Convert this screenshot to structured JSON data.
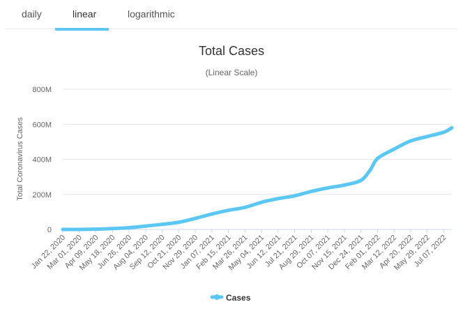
{
  "tabs": [
    {
      "label": "daily",
      "active": false
    },
    {
      "label": "linear",
      "active": true
    },
    {
      "label": "logarithmic",
      "active": false
    }
  ],
  "accent_color": "#5bc7f2",
  "chart_data": {
    "type": "line",
    "title": "Total Cases",
    "subtitle": "(Linear Scale)",
    "xlabel": "",
    "ylabel": "Total Coronavirus Cases",
    "ylim": [
      0,
      800000000
    ],
    "yticks": [
      {
        "value": 0,
        "label": "0"
      },
      {
        "value": 200000000,
        "label": "200M"
      },
      {
        "value": 400000000,
        "label": "400M"
      },
      {
        "value": 600000000,
        "label": "600M"
      },
      {
        "value": 800000000,
        "label": "800M"
      }
    ],
    "xtick_labels": [
      "Jan 22, 2020",
      "Mar 01, 2020",
      "Apr 09, 2020",
      "May 18, 2020",
      "Jun 26, 2020",
      "Aug 04, 2020",
      "Sep 12, 2020",
      "Oct 21, 2020",
      "Nov 29, 2020",
      "Jan 07, 2021",
      "Feb 15, 2021",
      "Mar 26, 2021",
      "May 04, 2021",
      "Jun 12, 2021",
      "Jul 21, 2021",
      "Aug 29, 2021",
      "Oct 07, 2021",
      "Nov 15, 2021",
      "Dec 24, 2021",
      "Feb 01, 2022",
      "Mar 12, 2022",
      "Apr 20, 2022",
      "May 29, 2022",
      "Jul 07, 2022"
    ],
    "grid": true,
    "legend_position": "bottom",
    "series": [
      {
        "name": "Cases",
        "color": "#5bc7f2",
        "x": [
          "Jan 22, 2020",
          "Mar 01, 2020",
          "Apr 09, 2020",
          "May 18, 2020",
          "Jun 26, 2020",
          "Aug 04, 2020",
          "Sep 12, 2020",
          "Oct 21, 2020",
          "Nov 29, 2020",
          "Jan 07, 2021",
          "Feb 15, 2021",
          "Mar 26, 2021",
          "May 04, 2021",
          "Jun 12, 2021",
          "Jul 21, 2021",
          "Aug 29, 2021",
          "Oct 07, 2021",
          "Nov 15, 2021",
          "Dec 24, 2021",
          "Jan 15, 2022",
          "Feb 01, 2022",
          "Mar 12, 2022",
          "Apr 20, 2022",
          "May 29, 2022",
          "Jul 07, 2022",
          "Jul 26, 2022"
        ],
        "values": [
          0,
          100000,
          1500000,
          4800000,
          10000000,
          19000000,
          29000000,
          41000000,
          63000000,
          88000000,
          109000000,
          126000000,
          155000000,
          176000000,
          192000000,
          217000000,
          237000000,
          253000000,
          280000000,
          340000000,
          405000000,
          458000000,
          505000000,
          530000000,
          555000000,
          580000000
        ]
      }
    ]
  }
}
